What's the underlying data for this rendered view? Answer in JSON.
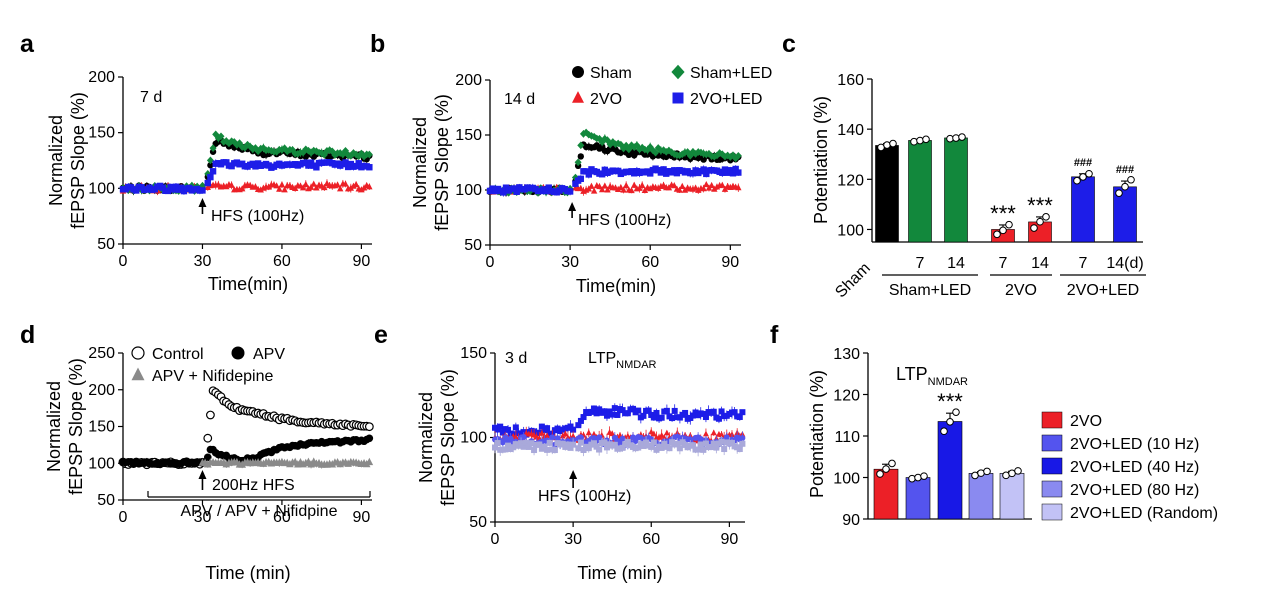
{
  "panel_labels": [
    "a",
    "b",
    "c",
    "d",
    "e",
    "f"
  ],
  "colors": {
    "sham": "#000000",
    "vo2": "#ec2027",
    "sham_led": "#12883c",
    "vo2_led": "#1d1de8",
    "gray": "#8a8a8a",
    "led10": "#5454ee",
    "led40": "#1818e6",
    "led80": "#8a8af0",
    "random": "#c2c2f6",
    "e_random": "#a9a9da"
  },
  "chart_data": [
    {
      "panel": "a",
      "type": "scatter",
      "xlabel": "Time(min)",
      "ylabel": "Normalized\nfEPSP Slope (%)",
      "xlim": [
        0,
        94
      ],
      "ylim": [
        50,
        200
      ],
      "xticks": [
        "0",
        "30",
        "60",
        "90"
      ],
      "yticks": [
        "50",
        "100",
        "150",
        "200"
      ],
      "annotations": {
        "time_label": "7 d",
        "hfs": "HFS (100Hz)"
      },
      "series": [
        {
          "marker": "circle",
          "color": "sham",
          "x": [
            0,
            30,
            31,
            35,
            40,
            45,
            50,
            55,
            60,
            65,
            70,
            75,
            80,
            85,
            90,
            93
          ],
          "y": [
            100,
            100,
            100,
            142,
            139,
            136,
            133,
            132,
            132,
            131,
            130,
            130,
            130,
            129,
            129,
            128
          ]
        },
        {
          "marker": "triangle",
          "color": "vo2",
          "x": [
            0,
            30,
            31,
            35,
            45,
            60,
            75,
            90,
            93
          ],
          "y": [
            100,
            100,
            100,
            101,
            101,
            101,
            102,
            101,
            101
          ]
        },
        {
          "marker": "diamond",
          "color": "sham_led",
          "x": [
            0,
            30,
            31,
            35,
            40,
            45,
            50,
            55,
            60,
            70,
            80,
            90,
            93
          ],
          "y": [
            100,
            100,
            100,
            147,
            141,
            138,
            136,
            135,
            134,
            133,
            132,
            131,
            131
          ]
        },
        {
          "marker": "square",
          "color": "vo2_led",
          "x": [
            0,
            30,
            31,
            35,
            40,
            50,
            60,
            70,
            80,
            90,
            93
          ],
          "y": [
            100,
            100,
            100,
            121,
            122,
            121,
            121,
            121,
            121,
            121,
            121
          ]
        }
      ]
    },
    {
      "panel": "b",
      "type": "scatter",
      "xlabel": "Time(min)",
      "ylabel": "Normalized\nfEPSP Slope (%)",
      "xlim": [
        0,
        94
      ],
      "ylim": [
        50,
        200
      ],
      "xticks": [
        "0",
        "30",
        "60",
        "90"
      ],
      "yticks": [
        "50",
        "100",
        "150",
        "200"
      ],
      "annotations": {
        "time_label": "14 d",
        "hfs": "HFS (100Hz)"
      },
      "legend": [
        "Sham",
        "Sham+LED",
        "2VO",
        "2VO+LED"
      ],
      "series": [
        {
          "name": "Sham",
          "marker": "circle",
          "color": "sham",
          "x": [
            0,
            30,
            31,
            35,
            40,
            45,
            50,
            55,
            60,
            70,
            80,
            90,
            93
          ],
          "y": [
            100,
            100,
            100,
            142,
            139,
            137,
            135,
            133,
            132,
            131,
            130,
            129,
            129
          ]
        },
        {
          "name": "2VO",
          "marker": "triangle",
          "color": "vo2",
          "x": [
            0,
            30,
            31,
            35,
            45,
            60,
            75,
            90,
            93
          ],
          "y": [
            100,
            100,
            100,
            101,
            102,
            102,
            102,
            103,
            103
          ]
        },
        {
          "name": "Sham+LED",
          "marker": "diamond",
          "color": "sham_led",
          "x": [
            0,
            30,
            31,
            35,
            40,
            45,
            50,
            60,
            70,
            80,
            90,
            93
          ],
          "y": [
            100,
            100,
            100,
            151,
            146,
            143,
            140,
            137,
            134,
            132,
            131,
            131
          ]
        },
        {
          "name": "2VO+LED",
          "marker": "square",
          "color": "vo2_led",
          "x": [
            0,
            30,
            31,
            35,
            45,
            60,
            75,
            90,
            93
          ],
          "y": [
            100,
            100,
            100,
            116,
            117,
            117,
            117,
            117,
            117
          ]
        }
      ]
    },
    {
      "panel": "c",
      "type": "bar",
      "ylabel": "Potentiation (%)",
      "ylim": [
        95,
        160
      ],
      "yticks": [
        "100",
        "120",
        "140",
        "160"
      ],
      "categories": [
        "Sham",
        "7",
        "14",
        "7",
        "14",
        "7",
        "14(d)"
      ],
      "groups": [
        "Sham+LED",
        "2VO",
        "2VO+LED"
      ],
      "values": [
        133.5,
        135.5,
        136.5,
        100,
        103,
        121,
        117
      ],
      "errors": [
        0.8,
        0.5,
        0.3,
        1.8,
        2.0,
        1.2,
        2.3
      ],
      "colors": [
        "sham",
        "sham_led",
        "sham_led",
        "vo2",
        "vo2",
        "vo2_led",
        "vo2_led"
      ],
      "marks": [
        "",
        "",
        "",
        "***",
        "***",
        "###",
        "###"
      ]
    },
    {
      "panel": "d",
      "type": "scatter",
      "xlabel": "Time (min)",
      "ylabel": "Normalized\nfEPSP Slope (%)",
      "xlim": [
        0,
        94
      ],
      "ylim": [
        50,
        250
      ],
      "xticks": [
        "0",
        "30",
        "60",
        "90"
      ],
      "yticks": [
        "50",
        "100",
        "150",
        "200",
        "250"
      ],
      "legend": [
        "Control",
        "APV",
        "APV + Nifidepine"
      ],
      "annotations": {
        "hfs": "200Hz HFS",
        "drug": "APV / APV + Nifidpine"
      },
      "series": [
        {
          "name": "Control",
          "marker": "open-circle",
          "color": "sham",
          "x": [
            0,
            30,
            31,
            34,
            40,
            45,
            50,
            55,
            60,
            70,
            80,
            90,
            93
          ],
          "y": [
            100,
            100,
            100,
            198,
            180,
            172,
            168,
            165,
            160,
            156,
            153,
            151,
            150
          ]
        },
        {
          "name": "APV",
          "marker": "circle",
          "color": "sham",
          "x": [
            0,
            30,
            31,
            33,
            35,
            40,
            45,
            50,
            55,
            60,
            70,
            80,
            90,
            93
          ],
          "y": [
            100,
            100,
            100,
            120,
            114,
            108,
            104,
            108,
            115,
            121,
            126,
            129,
            131,
            133
          ]
        },
        {
          "name": "APV + Nifidepine",
          "marker": "triangle",
          "color": "gray",
          "x": [
            30,
            31,
            35,
            45,
            60,
            75,
            90,
            93
          ],
          "y": [
            100,
            100,
            100,
            100,
            100,
            100,
            100,
            100
          ]
        }
      ]
    },
    {
      "panel": "e",
      "type": "scatter",
      "xlabel": "Time (min)",
      "ylabel": "Normalized\nfEPSP Slope (%)",
      "xlim": [
        0,
        96
      ],
      "ylim": [
        50,
        150
      ],
      "xticks": [
        "0",
        "30",
        "60",
        "90"
      ],
      "yticks": [
        "50",
        "100",
        "150"
      ],
      "annotations": {
        "time_label": "3 d",
        "title_main": "LTP",
        "title_sub": "NMDAR",
        "hfs": "HFS (100Hz)"
      },
      "series": [
        {
          "marker": "square",
          "color": "vo2_led",
          "x": [
            0,
            30,
            31,
            35,
            45,
            60,
            75,
            90,
            95
          ],
          "y": [
            104,
            104,
            104,
            116,
            115,
            114,
            113,
            113,
            113
          ]
        },
        {
          "marker": "triangle",
          "color": "vo2",
          "x": [
            0,
            30,
            31,
            40,
            60,
            80,
            95
          ],
          "y": [
            100,
            100,
            100,
            101,
            101,
            100,
            101
          ]
        },
        {
          "marker": "circle",
          "color": "led10",
          "x": [
            0,
            30,
            31,
            50,
            70,
            90,
            95
          ],
          "y": [
            98,
            98,
            98,
            98,
            98,
            98,
            98
          ]
        },
        {
          "marker": "square",
          "color": "e_random",
          "x": [
            0,
            30,
            31,
            60,
            95
          ],
          "y": [
            95,
            95,
            95,
            95,
            95
          ]
        }
      ]
    },
    {
      "panel": "f",
      "type": "bar",
      "title_main": "LTP",
      "title_sub": "NMDAR",
      "ylabel": "Potentiation (%)",
      "ylim": [
        90,
        130
      ],
      "yticks": [
        "90",
        "100",
        "110",
        "120",
        "130"
      ],
      "categories": [
        "2VO",
        "2VO+LED (10 Hz)",
        "2VO+LED (40 Hz)",
        "2VO+LED (80 Hz)",
        "2VO+LED (Random)"
      ],
      "values": [
        102,
        100,
        113.5,
        101,
        101
      ],
      "errors": [
        1.2,
        0.3,
        2.0,
        0.4,
        0.5
      ],
      "colors": [
        "vo2",
        "led10",
        "led40",
        "led80",
        "random"
      ],
      "marks": [
        "",
        "",
        "***",
        "",
        ""
      ]
    }
  ]
}
